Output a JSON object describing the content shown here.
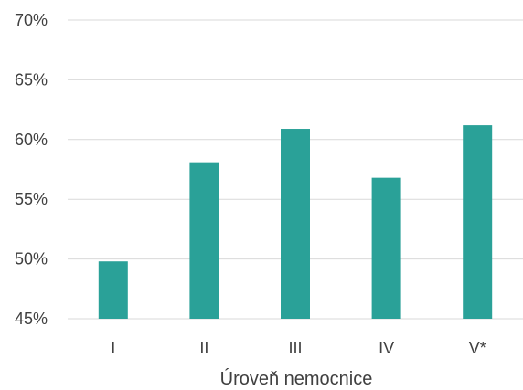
{
  "chart_data": {
    "type": "bar",
    "categories": [
      "I",
      "II",
      "III",
      "IV",
      "V*"
    ],
    "values": [
      49.8,
      58.1,
      60.9,
      56.8,
      61.2
    ],
    "value_unit": "%",
    "ylim": [
      45,
      70
    ],
    "yticks": [
      45,
      50,
      55,
      60,
      65,
      70
    ],
    "ytick_labels": [
      "45%",
      "50%",
      "55%",
      "60%",
      "65%",
      "70%"
    ],
    "xlabel": "Úroveň nemocnice",
    "ylabel": "",
    "grid": true,
    "legend": "none",
    "bar_color": "#2aa198"
  }
}
